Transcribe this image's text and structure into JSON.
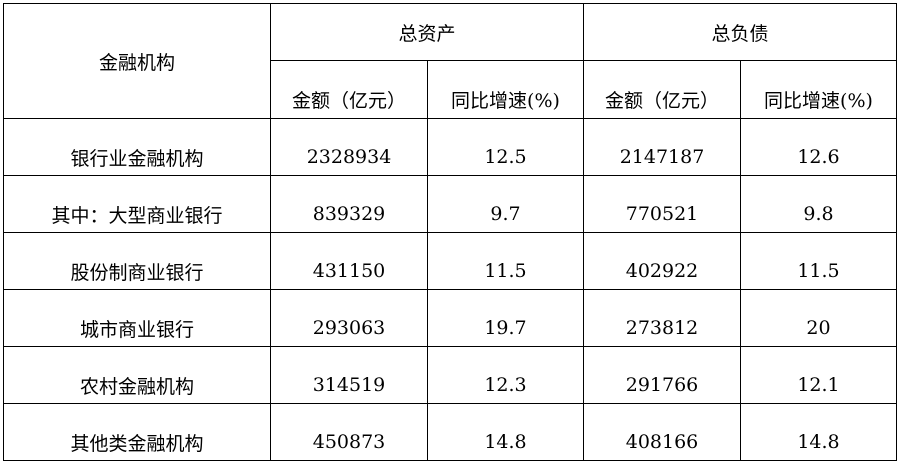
{
  "header": {
    "institution": "金融机构",
    "total_assets": "总资产",
    "total_liabilities": "总负债",
    "amount": "金额（亿元）",
    "yoy_growth": "同比增速(%)"
  },
  "rows": [
    {
      "name": "银行业金融机构",
      "assets": "2328934",
      "assets_growth": "12.5",
      "liabilities": "2147187",
      "liabilities_growth": "12.6"
    },
    {
      "name": "其中：大型商业银行",
      "assets": "839329",
      "assets_growth": "9.7",
      "liabilities": "770521",
      "liabilities_growth": "9.8"
    },
    {
      "name": "股份制商业银行",
      "assets": "431150",
      "assets_growth": "11.5",
      "liabilities": "402922",
      "liabilities_growth": "11.5"
    },
    {
      "name": "城市商业银行",
      "assets": "293063",
      "assets_growth": "19.7",
      "liabilities": "273812",
      "liabilities_growth": "20"
    },
    {
      "name": "农村金融机构",
      "assets": "314519",
      "assets_growth": "12.3",
      "liabilities": "291766",
      "liabilities_growth": "12.1"
    },
    {
      "name": "其他类金融机构",
      "assets": "450873",
      "assets_growth": "14.8",
      "liabilities": "408166",
      "liabilities_growth": "14.8"
    }
  ]
}
